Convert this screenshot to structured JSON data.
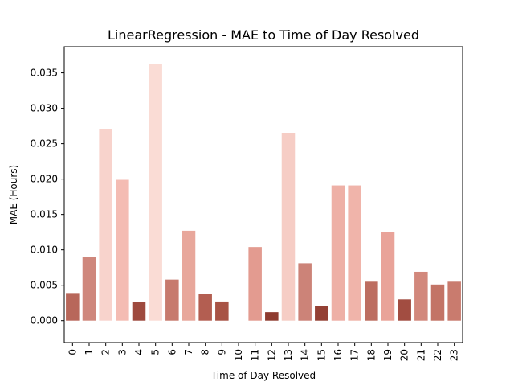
{
  "chart_data": {
    "type": "bar",
    "title": "LinearRegression - MAE to Time of Day Resolved",
    "xlabel": "Time of Day Resolved",
    "ylabel": "MAE (Hours)",
    "categories": [
      "0",
      "1",
      "2",
      "3",
      "4",
      "5",
      "6",
      "7",
      "8",
      "9",
      "10",
      "11",
      "12",
      "13",
      "14",
      "15",
      "16",
      "17",
      "18",
      "19",
      "20",
      "21",
      "22",
      "23"
    ],
    "values": [
      0.0039,
      0.009,
      0.0271,
      0.0199,
      0.0026,
      0.0363,
      0.0058,
      0.0127,
      0.0038,
      0.0027,
      0.0,
      0.0104,
      0.0012,
      0.0265,
      0.0081,
      0.0021,
      0.0191,
      0.0191,
      0.0055,
      0.0125,
      0.003,
      0.0069,
      0.0051,
      0.0055
    ],
    "colors": [
      "#b8675a",
      "#cf877c",
      "#f8d3cc",
      "#f4bcb3",
      "#9e4a3e",
      "#fadcd5",
      "#c77a6d",
      "#e8a79b",
      "#b35e51",
      "#a85345",
      "#ffffff",
      "#e39b90",
      "#8e3b2f",
      "#f6cdc5",
      "#cc8378",
      "#944034",
      "#eeb0a6",
      "#f0b4aa",
      "#bd6e61",
      "#e9a399",
      "#a24d41",
      "#d2887c",
      "#c37466",
      "#c97b6e"
    ],
    "yticks": [
      "0.000",
      "0.005",
      "0.010",
      "0.015",
      "0.020",
      "0.025",
      "0.030",
      "0.035"
    ],
    "ylim": [
      -0.0031,
      0.0387
    ],
    "grid": false,
    "legend": "none"
  }
}
